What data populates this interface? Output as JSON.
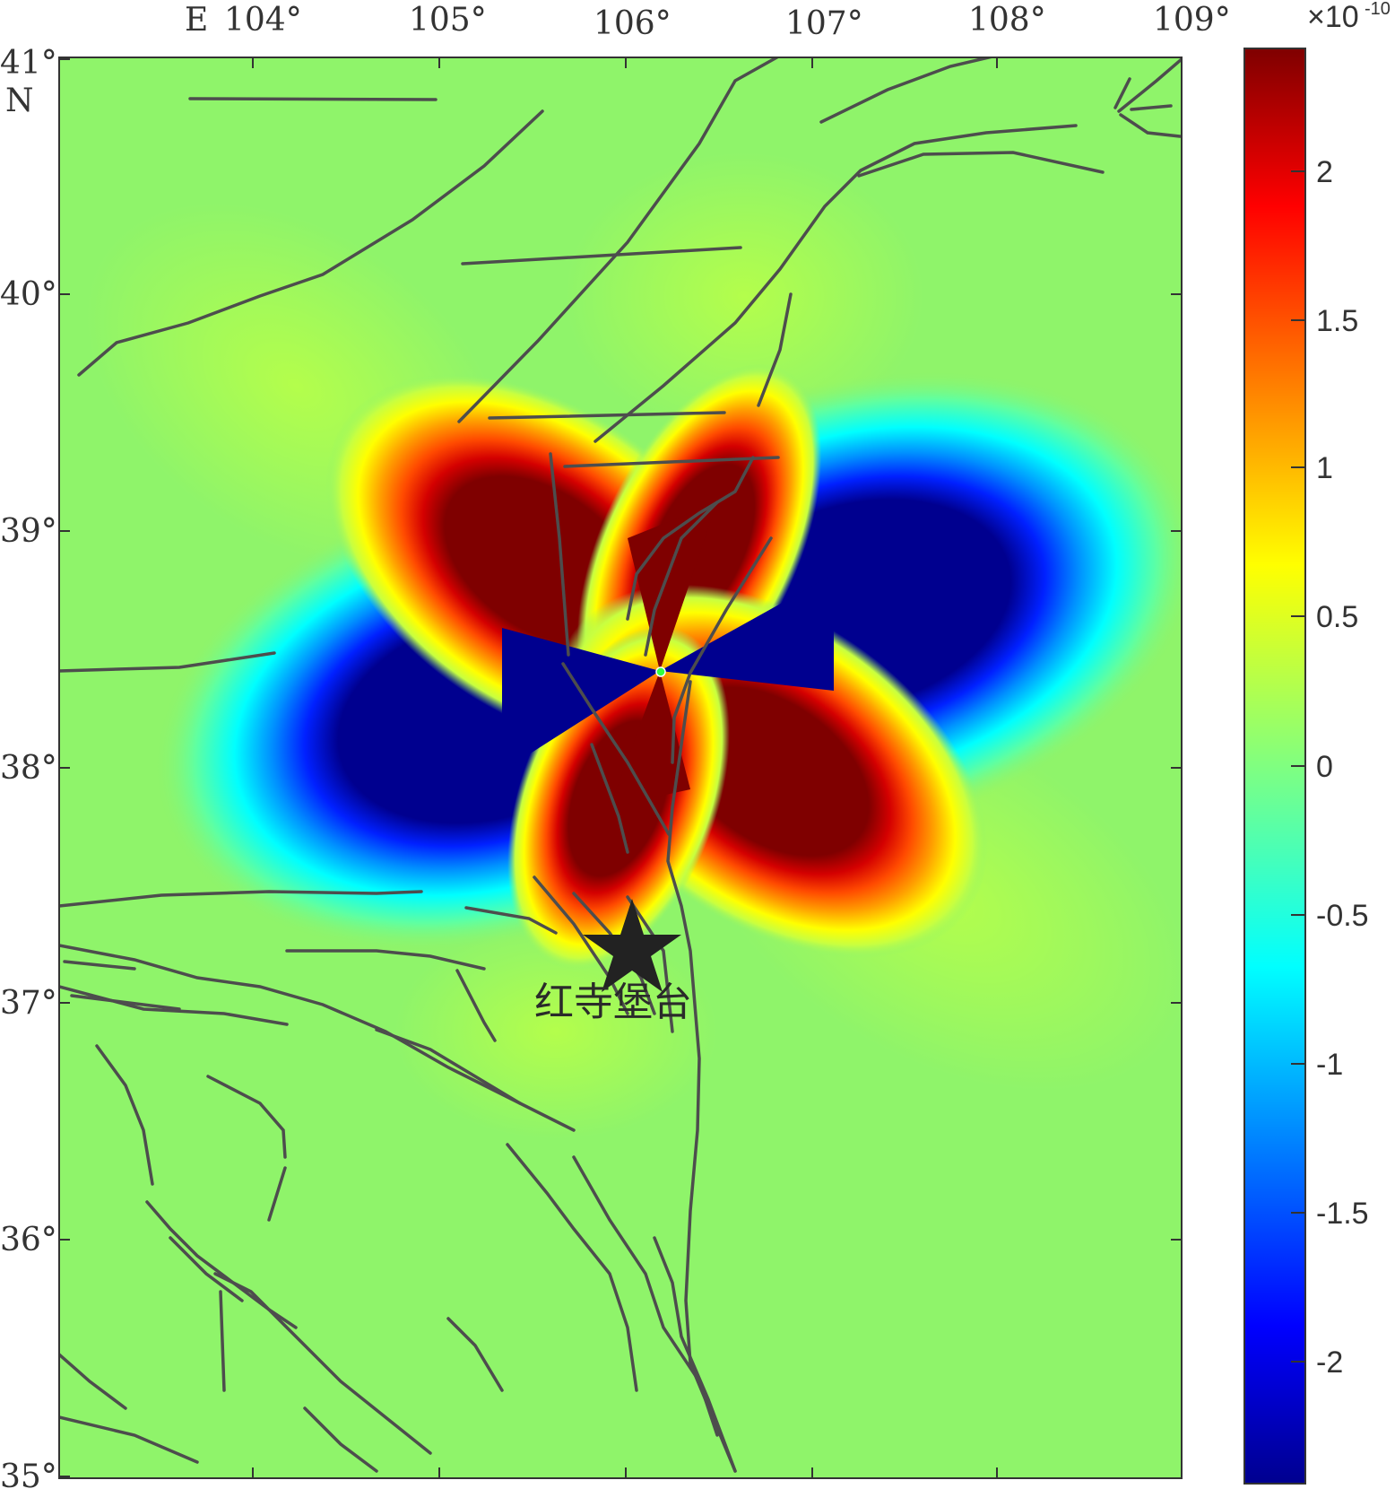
{
  "map": {
    "lon_prefix": "E",
    "lat_prefix": "N",
    "lon_ticks": [
      "104°",
      "105°",
      "106°",
      "107°",
      "108°",
      "109°"
    ],
    "lat_ticks": [
      "41°",
      "40°",
      "39°",
      "38°",
      "37°",
      "36°",
      "35°"
    ],
    "extent": {
      "lon": [
        103.0,
        109.0
      ],
      "lat": [
        35.0,
        41.0
      ]
    },
    "background_color": "#8ff46a",
    "fault_color": "#4d4d4d",
    "station": {
      "name": "红寺堡台",
      "lon": 106.05,
      "lat": 37.3,
      "icon": "star-icon",
      "color": "#222222"
    }
  },
  "colorbar": {
    "exponent_label": "×10",
    "exponent_power": "-10",
    "tick_labels": [
      "2",
      "1.5",
      "1",
      "0.5",
      "0",
      "-0.5",
      "-1",
      "-1.5",
      "-2"
    ],
    "tick_values": [
      2,
      1.5,
      1,
      0.5,
      0,
      -0.5,
      -1,
      -1.5,
      -2
    ],
    "range": [
      -2.4,
      2.4
    ],
    "colormap": "jet"
  }
}
